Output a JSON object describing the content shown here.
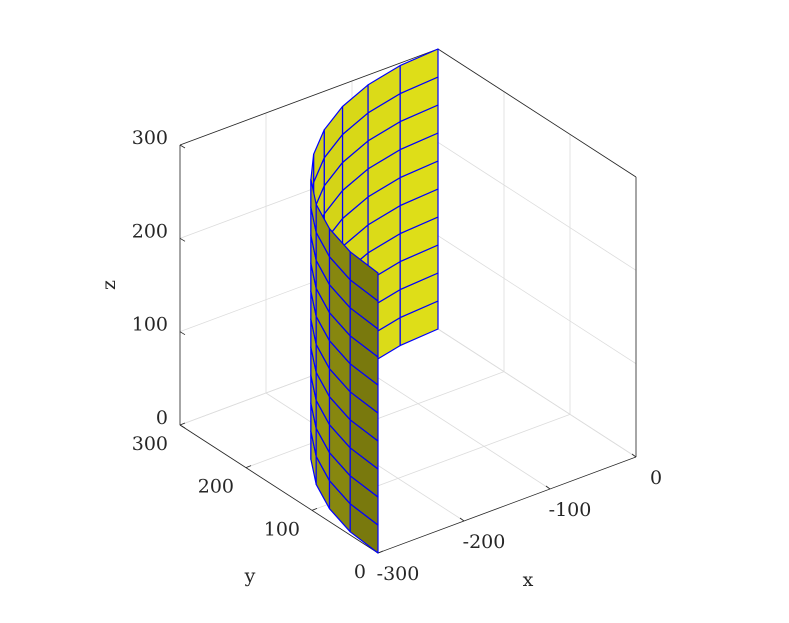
{
  "chart_data": {
    "type": "surface",
    "xlabel": "x",
    "ylabel": "y",
    "zlabel": "z",
    "x": [
      -300,
      -296.3,
      -285.3,
      -267.3,
      -242.7,
      -212.1,
      -176.3,
      -136.2,
      -92.7,
      -46.9,
      0
    ],
    "y": [
      0,
      46.9,
      92.7,
      136.2,
      176.3,
      212.1,
      242.7,
      267.3,
      285.3,
      296.3,
      300
    ],
    "z": [
      0,
      30,
      60,
      90,
      120,
      150,
      180,
      210,
      240,
      270,
      300
    ],
    "xlim": [
      -300,
      0
    ],
    "ylim": [
      0,
      300
    ],
    "zlim": [
      0,
      300
    ],
    "xticks": [
      -300,
      -200,
      -100,
      0
    ],
    "yticks": [
      0,
      100,
      200,
      300
    ],
    "zticks": [
      0,
      100,
      200,
      300
    ],
    "grid": true,
    "facecolor": "#e6e619",
    "edgecolor": "#0000ff"
  }
}
